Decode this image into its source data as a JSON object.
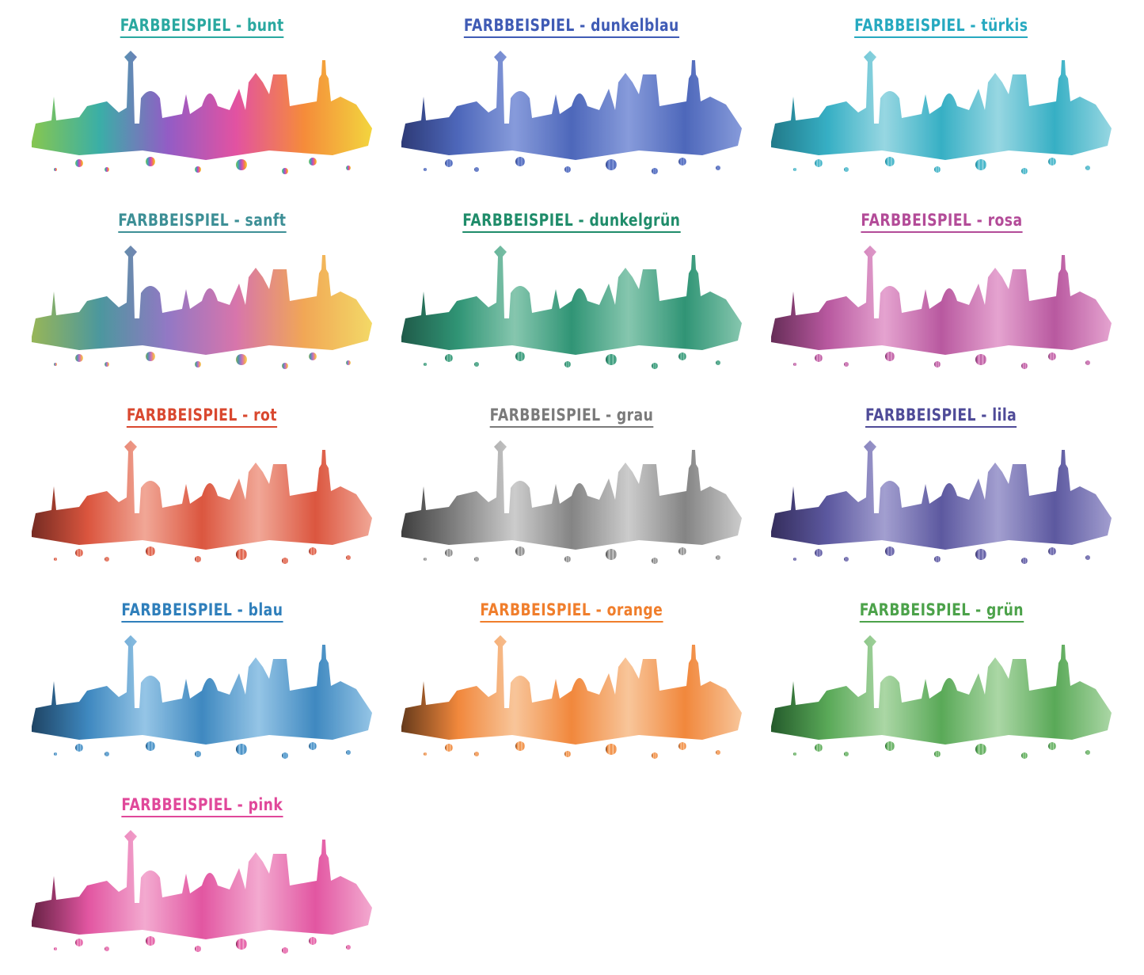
{
  "items": [
    {
      "label": "FARBBEISPIEL - bunt"
    },
    {
      "label": "FARBBEISPIEL - dunkelblau"
    },
    {
      "label": "FARBBEISPIEL - türkis"
    },
    {
      "label": "FARBBEISPIEL - sanft"
    },
    {
      "label": "FARBBEISPIEL - dunkelgrün"
    },
    {
      "label": "FARBBEISPIEL - rosa"
    },
    {
      "label": "FARBBEISPIEL - rot"
    },
    {
      "label": "FARBBEISPIEL - grau"
    },
    {
      "label": "FARBBEISPIEL - lila"
    },
    {
      "label": "FARBBEISPIEL - blau"
    },
    {
      "label": "FARBBEISPIEL - orange"
    },
    {
      "label": "FARBBEISPIEL - grün"
    },
    {
      "label": "FARBBEISPIEL - pink"
    }
  ]
}
